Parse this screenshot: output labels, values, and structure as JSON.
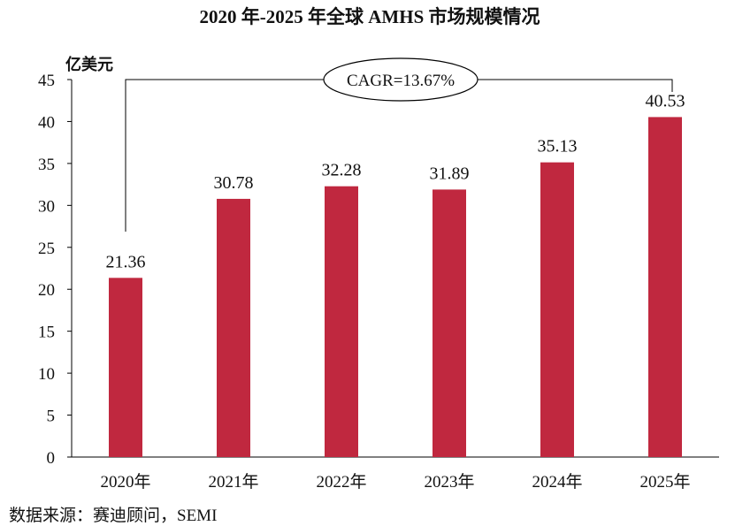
{
  "chart_data": {
    "type": "bar",
    "title": "2020 年-2025 年全球 AMHS 市场规模情况",
    "ylabel": "亿美元",
    "xlabel": "",
    "categories": [
      "2020年",
      "2021年",
      "2022年",
      "2023年",
      "2024年",
      "2025年"
    ],
    "values": [
      21.36,
      30.78,
      32.28,
      31.89,
      35.13,
      40.53
    ],
    "data_labels": [
      "21.36",
      "30.78",
      "32.28",
      "31.89",
      "35.13",
      "40.53"
    ],
    "ylim": [
      0,
      45
    ],
    "yticks": [
      0,
      5,
      10,
      15,
      20,
      25,
      30,
      35,
      40,
      45
    ],
    "grid": false,
    "bar_color": "#C0283F",
    "annotation": "CAGR=13.67%"
  },
  "source": "数据来源：赛迪顾问，SEMI"
}
